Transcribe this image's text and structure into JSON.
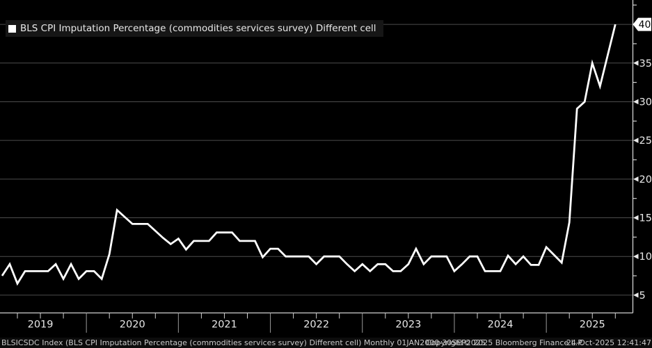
{
  "window": {
    "background": "#000000"
  },
  "legend": {
    "label": "BLS CPI Imputation Percentage (commodities services survey) Different cell",
    "marker_color": "#ffffff"
  },
  "footer": {
    "left": "BLSICSDC Index (BLS CPI Imputation Percentage (commodities services survey) Different cell) Monthly 01JAN2000-30SEP2025",
    "center": "Copyright© 2025 Bloomberg Finance L.P.",
    "right": "24-Oct-2025 12:41:47"
  },
  "chart_data": {
    "type": "line",
    "title": "BLS CPI Imputation Percentage (commodities services survey) Different cell",
    "ticker": "BLSICSDC Index",
    "frequency": "Monthly",
    "legend_position": "top-left",
    "grid": "horizontal",
    "xlabel": "",
    "ylabel": "",
    "x": [
      "2019-01",
      "2019-02",
      "2019-03",
      "2019-04",
      "2019-05",
      "2019-06",
      "2019-07",
      "2019-08",
      "2019-09",
      "2019-10",
      "2019-11",
      "2019-12",
      "2020-01",
      "2020-02",
      "2020-03",
      "2020-04",
      "2020-05",
      "2020-06",
      "2020-07",
      "2020-08",
      "2020-09",
      "2020-10",
      "2020-11",
      "2020-12",
      "2021-01",
      "2021-02",
      "2021-03",
      "2021-04",
      "2021-05",
      "2021-06",
      "2021-07",
      "2021-08",
      "2021-09",
      "2021-10",
      "2021-11",
      "2021-12",
      "2022-01",
      "2022-02",
      "2022-03",
      "2022-04",
      "2022-05",
      "2022-06",
      "2022-07",
      "2022-08",
      "2022-09",
      "2022-10",
      "2022-11",
      "2022-12",
      "2023-01",
      "2023-02",
      "2023-03",
      "2023-04",
      "2023-05",
      "2023-06",
      "2023-07",
      "2023-08",
      "2023-09",
      "2023-10",
      "2023-11",
      "2023-12",
      "2024-01",
      "2024-02",
      "2024-03",
      "2024-04",
      "2024-05",
      "2024-06",
      "2024-07",
      "2024-08",
      "2024-09",
      "2024-10",
      "2024-11",
      "2024-12",
      "2025-01",
      "2025-02",
      "2025-03",
      "2025-04",
      "2025-05",
      "2025-06",
      "2025-07",
      "2025-08",
      "2025-09"
    ],
    "values": [
      7.5,
      9,
      6.5,
      8.1,
      8.1,
      8.1,
      8.1,
      9,
      7.1,
      9,
      7.1,
      8.1,
      8.1,
      7.1,
      10.3,
      16,
      15.1,
      14.2,
      14.2,
      14.2,
      13.3,
      12.4,
      11.6,
      12.3,
      10.9,
      12,
      12,
      12,
      13.1,
      13.1,
      13.1,
      12,
      12,
      12,
      9.9,
      11,
      11,
      10,
      10,
      10,
      10,
      9,
      10,
      10,
      10,
      9,
      8.1,
      9,
      8.1,
      9,
      9,
      8.1,
      8.1,
      9,
      11,
      9,
      10,
      10,
      10,
      8.1,
      9,
      10,
      10,
      8.1,
      8.1,
      8.1,
      10.1,
      9,
      10,
      8.9,
      8.9,
      11.2,
      10.2,
      9.2,
      14.4,
      29.1,
      30,
      35,
      32,
      36,
      40
    ],
    "last_value": 40,
    "last_value_label": "40",
    "year_labels": [
      "2019",
      "2020",
      "2021",
      "2022",
      "2023",
      "2024",
      "2025"
    ],
    "ytick_values": [
      5,
      10,
      15,
      20,
      25,
      30,
      35,
      40
    ],
    "ytick_minor": [
      7.5,
      12.5,
      17.5,
      22.5,
      27.5,
      32.5,
      37.5,
      42.5
    ],
    "ylim": [
      2.7,
      43.15
    ],
    "colors": {
      "line": "#ffffff",
      "grid": "#4d4d4d",
      "axis": "#d0d0d0",
      "label": "#e8e8e8",
      "tag_bg": "#ffffff",
      "tag_text": "#000000",
      "background": "#000000"
    }
  }
}
